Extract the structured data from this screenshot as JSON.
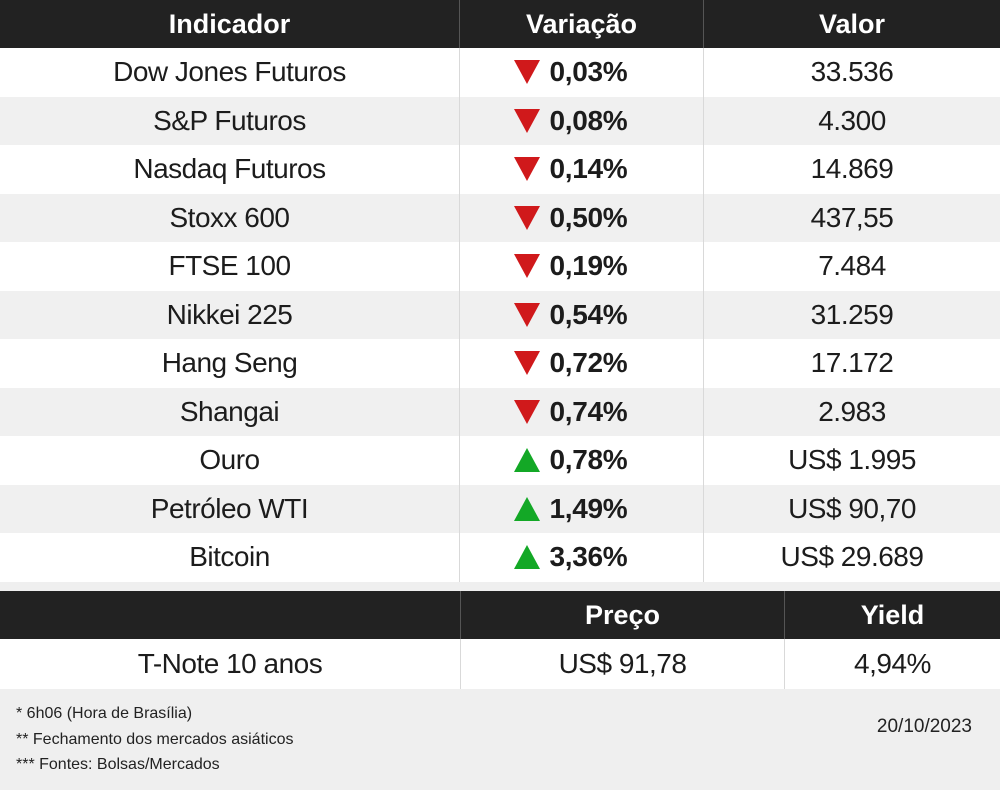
{
  "table1": {
    "headers": [
      "Indicador",
      "Variação",
      "Valor"
    ],
    "rows": [
      {
        "name": "Dow Jones Futuros",
        "direction": "down",
        "change": "0,03%",
        "value": "33.536"
      },
      {
        "name": "S&P Futuros",
        "direction": "down",
        "change": "0,08%",
        "value": "4.300"
      },
      {
        "name": "Nasdaq Futuros",
        "direction": "down",
        "change": "0,14%",
        "value": "14.869"
      },
      {
        "name": "Stoxx 600",
        "direction": "down",
        "change": "0,50%",
        "value": "437,55"
      },
      {
        "name": "FTSE 100",
        "direction": "down",
        "change": "0,19%",
        "value": "7.484"
      },
      {
        "name": "Nikkei 225",
        "direction": "down",
        "change": "0,54%",
        "value": "31.259"
      },
      {
        "name": "Hang Seng",
        "direction": "down",
        "change": "0,72%",
        "value": "17.172"
      },
      {
        "name": "Shangai",
        "direction": "down",
        "change": "0,74%",
        "value": "2.983"
      },
      {
        "name": "Ouro",
        "direction": "up",
        "change": "0,78%",
        "value": "US$ 1.995"
      },
      {
        "name": "Petróleo WTI",
        "direction": "up",
        "change": "1,49%",
        "value": "US$ 90,70"
      },
      {
        "name": "Bitcoin",
        "direction": "up",
        "change": "3,36%",
        "value": "US$ 29.689"
      }
    ]
  },
  "table2": {
    "headers": [
      "",
      "Preço",
      "Yield"
    ],
    "rows": [
      {
        "name": "T-Note 10 anos",
        "price": "US$ 91,78",
        "yield": "4,94%"
      }
    ]
  },
  "footer": {
    "notes": [
      "* 6h06 (Hora de Brasília)",
      "** Fechamento dos mercados asiáticos",
      "*** Fontes: Bolsas/Mercados"
    ],
    "date": "20/10/2023"
  },
  "colors": {
    "header_bg": "#222222",
    "down": "#d0191b",
    "up": "#13a826"
  }
}
